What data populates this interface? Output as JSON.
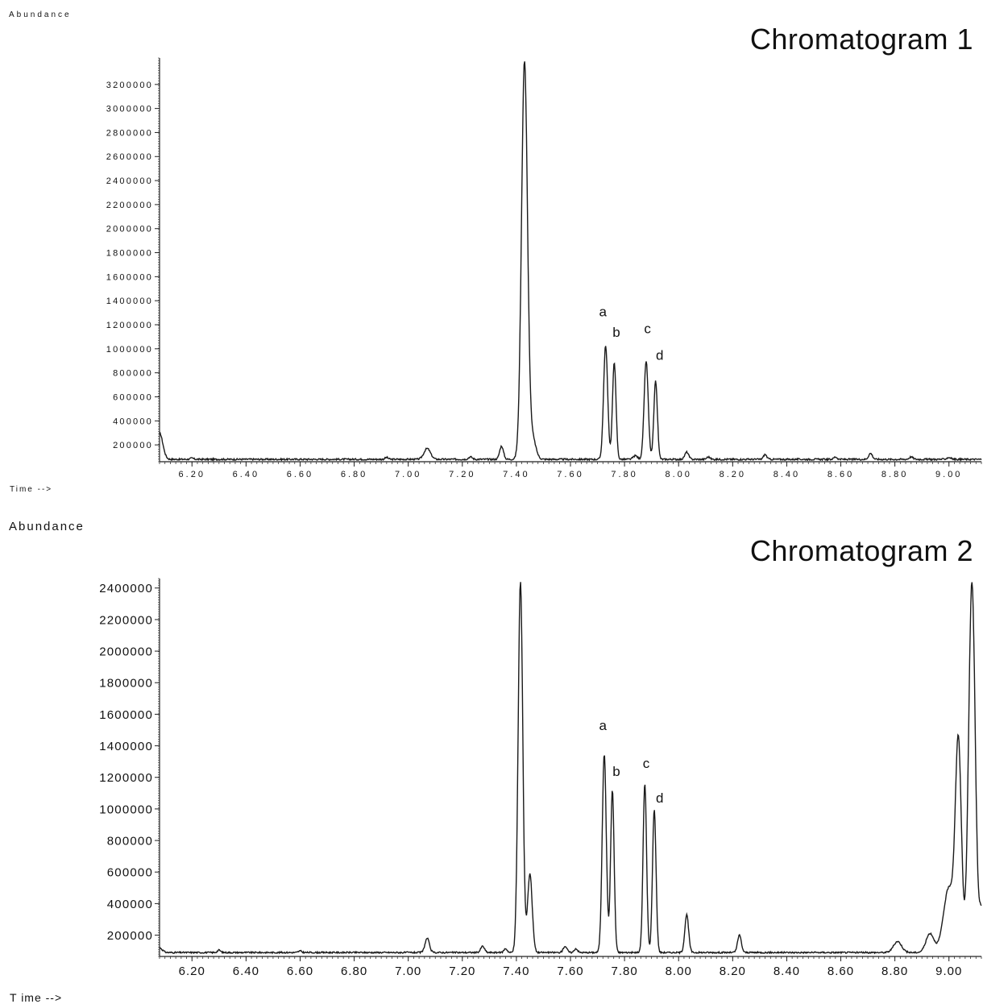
{
  "chart_data": [
    {
      "type": "line",
      "title": "Chromatogram 1",
      "ylabel": "Abundance",
      "xlabel": "Time -->",
      "xlim": [
        6.08,
        9.12
      ],
      "ylim": [
        60000,
        3420000
      ],
      "x_ticks": [
        "6.20",
        "6.40",
        "6.60",
        "6.80",
        "7.00",
        "7.20",
        "7.40",
        "7.60",
        "7.80",
        "8.00",
        "8.20",
        "8.40",
        "8.60",
        "8.80",
        "9.00"
      ],
      "y_ticks": [
        "200000",
        "400000",
        "600000",
        "800000",
        "1000000",
        "1200000",
        "1400000",
        "1600000",
        "1800000",
        "2000000",
        "2200000",
        "2400000",
        "2600000",
        "2800000",
        "3000000",
        "3200000"
      ],
      "grid": false,
      "series": [
        {
          "baseline": 80000,
          "peaks": [
            {
              "x": 6.08,
              "y": 300000,
              "w": 0.012
            },
            {
              "x": 6.2,
              "y": 90000,
              "w": 0.006
            },
            {
              "x": 6.92,
              "y": 95000,
              "w": 0.006
            },
            {
              "x": 7.07,
              "y": 170000,
              "w": 0.012
            },
            {
              "x": 7.23,
              "y": 100000,
              "w": 0.007
            },
            {
              "x": 7.345,
              "y": 190000,
              "w": 0.007
            },
            {
              "x": 7.43,
              "y": 3390000,
              "w": 0.011
            },
            {
              "x": 7.46,
              "y": 250000,
              "w": 0.012
            },
            {
              "x": 7.73,
              "y": 1030000,
              "w": 0.0075
            },
            {
              "x": 7.762,
              "y": 890000,
              "w": 0.0065
            },
            {
              "x": 7.84,
              "y": 110000,
              "w": 0.008
            },
            {
              "x": 7.88,
              "y": 900000,
              "w": 0.0075
            },
            {
              "x": 7.915,
              "y": 730000,
              "w": 0.0065
            },
            {
              "x": 8.03,
              "y": 140000,
              "w": 0.007
            },
            {
              "x": 8.11,
              "y": 100000,
              "w": 0.006
            },
            {
              "x": 8.32,
              "y": 120000,
              "w": 0.006
            },
            {
              "x": 8.58,
              "y": 100000,
              "w": 0.006
            },
            {
              "x": 8.71,
              "y": 130000,
              "w": 0.007
            },
            {
              "x": 8.86,
              "y": 100000,
              "w": 0.007
            },
            {
              "x": 9.0,
              "y": 95000,
              "w": 0.008
            }
          ]
        }
      ],
      "annotations": [
        {
          "text": "a",
          "x": 7.72,
          "y": 1270000
        },
        {
          "text": "b",
          "x": 7.77,
          "y": 1100000
        },
        {
          "text": "c",
          "x": 7.885,
          "y": 1130000
        },
        {
          "text": "d",
          "x": 7.93,
          "y": 910000
        }
      ]
    },
    {
      "type": "line",
      "title": "Chromatogram 2",
      "ylabel": "Abundance",
      "xlabel": "T ime -->",
      "xlim": [
        6.08,
        9.12
      ],
      "ylim": [
        65000,
        2460000
      ],
      "x_ticks": [
        "6.20",
        "6.40",
        "6.60",
        "6.80",
        "7.00",
        "7.20",
        "7.40",
        "7.60",
        "7.80",
        "8.00",
        "8.20",
        "8.40",
        "8.60",
        "8.80",
        "9.00"
      ],
      "y_ticks": [
        "200000",
        "400000",
        "600000",
        "800000",
        "1000000",
        "1200000",
        "1400000",
        "1600000",
        "1800000",
        "2000000",
        "2200000",
        "2400000"
      ],
      "grid": false,
      "series": [
        {
          "baseline": 90000,
          "peaks": [
            {
              "x": 6.08,
              "y": 120000,
              "w": 0.01
            },
            {
              "x": 6.3,
              "y": 105000,
              "w": 0.006
            },
            {
              "x": 6.6,
              "y": 100000,
              "w": 0.006
            },
            {
              "x": 7.07,
              "y": 180000,
              "w": 0.008
            },
            {
              "x": 7.275,
              "y": 130000,
              "w": 0.007
            },
            {
              "x": 7.36,
              "y": 115000,
              "w": 0.006
            },
            {
              "x": 7.415,
              "y": 2440000,
              "w": 0.0085
            },
            {
              "x": 7.45,
              "y": 590000,
              "w": 0.0085
            },
            {
              "x": 7.58,
              "y": 130000,
              "w": 0.007
            },
            {
              "x": 7.62,
              "y": 115000,
              "w": 0.006
            },
            {
              "x": 7.725,
              "y": 1350000,
              "w": 0.0075
            },
            {
              "x": 7.755,
              "y": 1120000,
              "w": 0.0065
            },
            {
              "x": 7.875,
              "y": 1160000,
              "w": 0.0065
            },
            {
              "x": 7.91,
              "y": 1000000,
              "w": 0.0065
            },
            {
              "x": 8.03,
              "y": 330000,
              "w": 0.007
            },
            {
              "x": 8.225,
              "y": 200000,
              "w": 0.007
            },
            {
              "x": 8.81,
              "y": 160000,
              "w": 0.015
            },
            {
              "x": 8.93,
              "y": 210000,
              "w": 0.015
            },
            {
              "x": 9.0,
              "y": 500000,
              "w": 0.02
            },
            {
              "x": 9.035,
              "y": 1380000,
              "w": 0.011
            },
            {
              "x": 9.085,
              "y": 2440000,
              "w": 0.012
            },
            {
              "x": 9.12,
              "y": 350000,
              "w": 0.008
            }
          ]
        }
      ],
      "annotations": [
        {
          "text": "a",
          "x": 7.72,
          "y": 1500000
        },
        {
          "text": "b",
          "x": 7.77,
          "y": 1210000
        },
        {
          "text": "c",
          "x": 7.88,
          "y": 1260000
        },
        {
          "text": "d",
          "x": 7.93,
          "y": 1040000
        }
      ]
    }
  ]
}
